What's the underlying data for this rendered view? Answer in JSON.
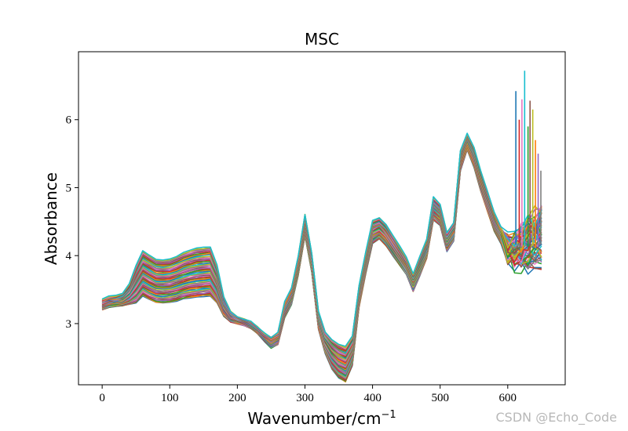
{
  "chart_data": {
    "type": "line",
    "title": "MSC",
    "xlabel": "Wavenumber/cm",
    "xlabel_superscript": "−1",
    "ylabel": "Absorbance",
    "xlim": [
      -35,
      685
    ],
    "ylim": [
      2.1,
      7.0
    ],
    "xticks": [
      0,
      100,
      200,
      300,
      400,
      500,
      600
    ],
    "yticks": [
      3,
      4,
      5,
      6
    ],
    "n_series": 60,
    "series_colors": [
      "#1f77b4",
      "#ff7f0e",
      "#2ca02c",
      "#d62728",
      "#9467bd",
      "#8c564b",
      "#e377c2",
      "#7f7f7f",
      "#bcbd22",
      "#17becf"
    ],
    "x": [
      0,
      10,
      20,
      30,
      40,
      50,
      60,
      70,
      80,
      90,
      100,
      110,
      120,
      130,
      140,
      150,
      160,
      170,
      180,
      190,
      200,
      210,
      220,
      230,
      240,
      250,
      260,
      270,
      280,
      290,
      300,
      310,
      320,
      330,
      340,
      350,
      360,
      370,
      380,
      390,
      400,
      410,
      420,
      430,
      440,
      450,
      460,
      470,
      480,
      490,
      500,
      510,
      520,
      530,
      540,
      550,
      560,
      570,
      580,
      590,
      600,
      610,
      620,
      630,
      640,
      650
    ],
    "mean": [
      3.28,
      3.32,
      3.33,
      3.35,
      3.43,
      3.58,
      3.74,
      3.68,
      3.63,
      3.62,
      3.63,
      3.66,
      3.7,
      3.73,
      3.75,
      3.76,
      3.77,
      3.58,
      3.25,
      3.1,
      3.05,
      3.02,
      2.98,
      2.9,
      2.8,
      2.72,
      2.78,
      3.2,
      3.4,
      3.85,
      4.45,
      3.9,
      3.05,
      2.72,
      2.55,
      2.45,
      2.4,
      2.6,
      3.4,
      3.9,
      4.35,
      4.4,
      4.3,
      4.15,
      4.0,
      3.85,
      3.6,
      3.85,
      4.1,
      4.7,
      4.6,
      4.2,
      4.35,
      5.4,
      5.68,
      5.45,
      5.1,
      4.8,
      4.5,
      4.3,
      4.1,
      4.05,
      4.1,
      4.2,
      4.25,
      4.3
    ],
    "spread": [
      0.08,
      0.08,
      0.08,
      0.09,
      0.15,
      0.28,
      0.33,
      0.33,
      0.32,
      0.32,
      0.32,
      0.33,
      0.34,
      0.35,
      0.36,
      0.36,
      0.36,
      0.28,
      0.15,
      0.08,
      0.05,
      0.05,
      0.05,
      0.05,
      0.06,
      0.08,
      0.09,
      0.12,
      0.12,
      0.14,
      0.16,
      0.14,
      0.13,
      0.16,
      0.22,
      0.25,
      0.26,
      0.22,
      0.16,
      0.16,
      0.17,
      0.16,
      0.16,
      0.15,
      0.14,
      0.13,
      0.13,
      0.14,
      0.14,
      0.17,
      0.16,
      0.14,
      0.14,
      0.15,
      0.12,
      0.15,
      0.15,
      0.15,
      0.14,
      0.12,
      0.12,
      0.15,
      0.25,
      0.3,
      0.35,
      0.4
    ],
    "spikes": [
      {
        "x": 612,
        "y": 6.42
      },
      {
        "x": 617,
        "y": 6.0
      },
      {
        "x": 621,
        "y": 6.3
      },
      {
        "x": 625,
        "y": 6.72
      },
      {
        "x": 630,
        "y": 5.9
      },
      {
        "x": 633,
        "y": 6.28
      },
      {
        "x": 637,
        "y": 6.15
      },
      {
        "x": 641,
        "y": 5.7
      },
      {
        "x": 645,
        "y": 5.5
      },
      {
        "x": 649,
        "y": 5.25
      }
    ]
  },
  "watermark": "CSDN @Echo_Code"
}
